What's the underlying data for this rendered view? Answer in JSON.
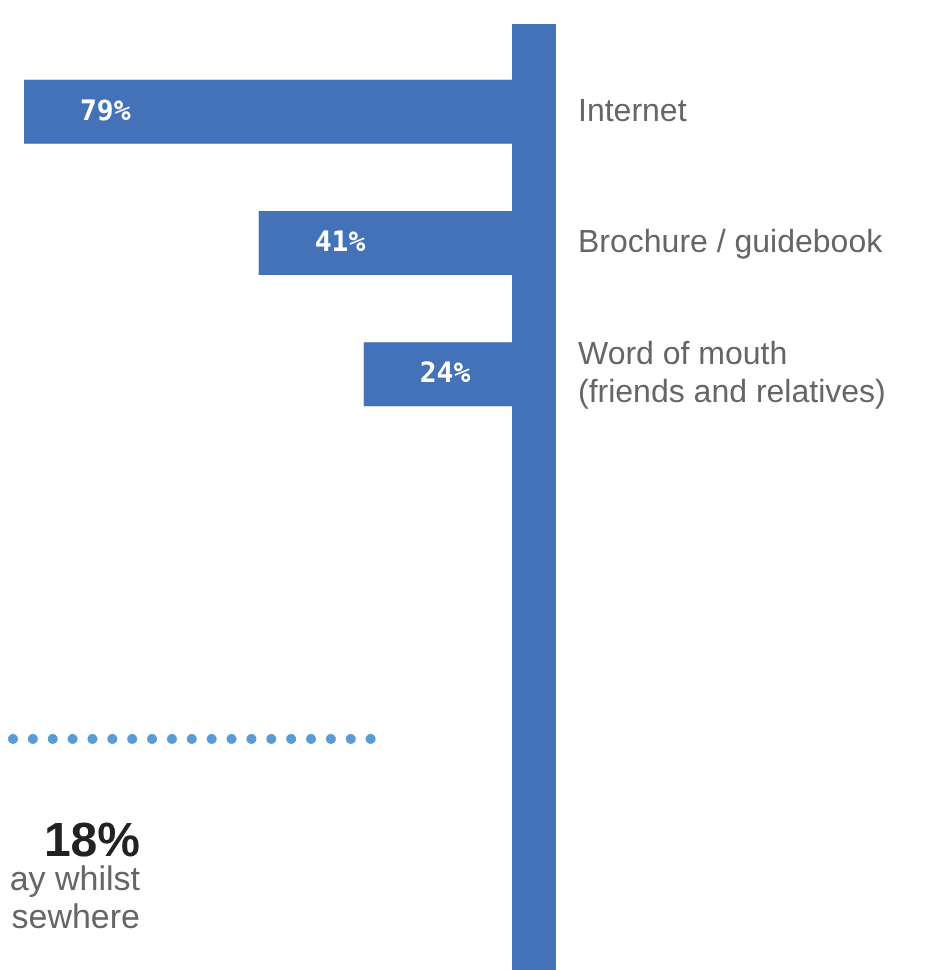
{
  "chart_data": {
    "type": "bar",
    "orientation": "horizontal",
    "categories": [
      "Internet",
      "Brochure / guidebook",
      "Word of mouth\n(friends and relatives)"
    ],
    "values": [
      79,
      41,
      24
    ],
    "value_labels": [
      "79%",
      "41%",
      "24%"
    ],
    "color": "#4472b8",
    "annotations": [
      "18%",
      "ay whilst\nsewhere"
    ]
  }
}
